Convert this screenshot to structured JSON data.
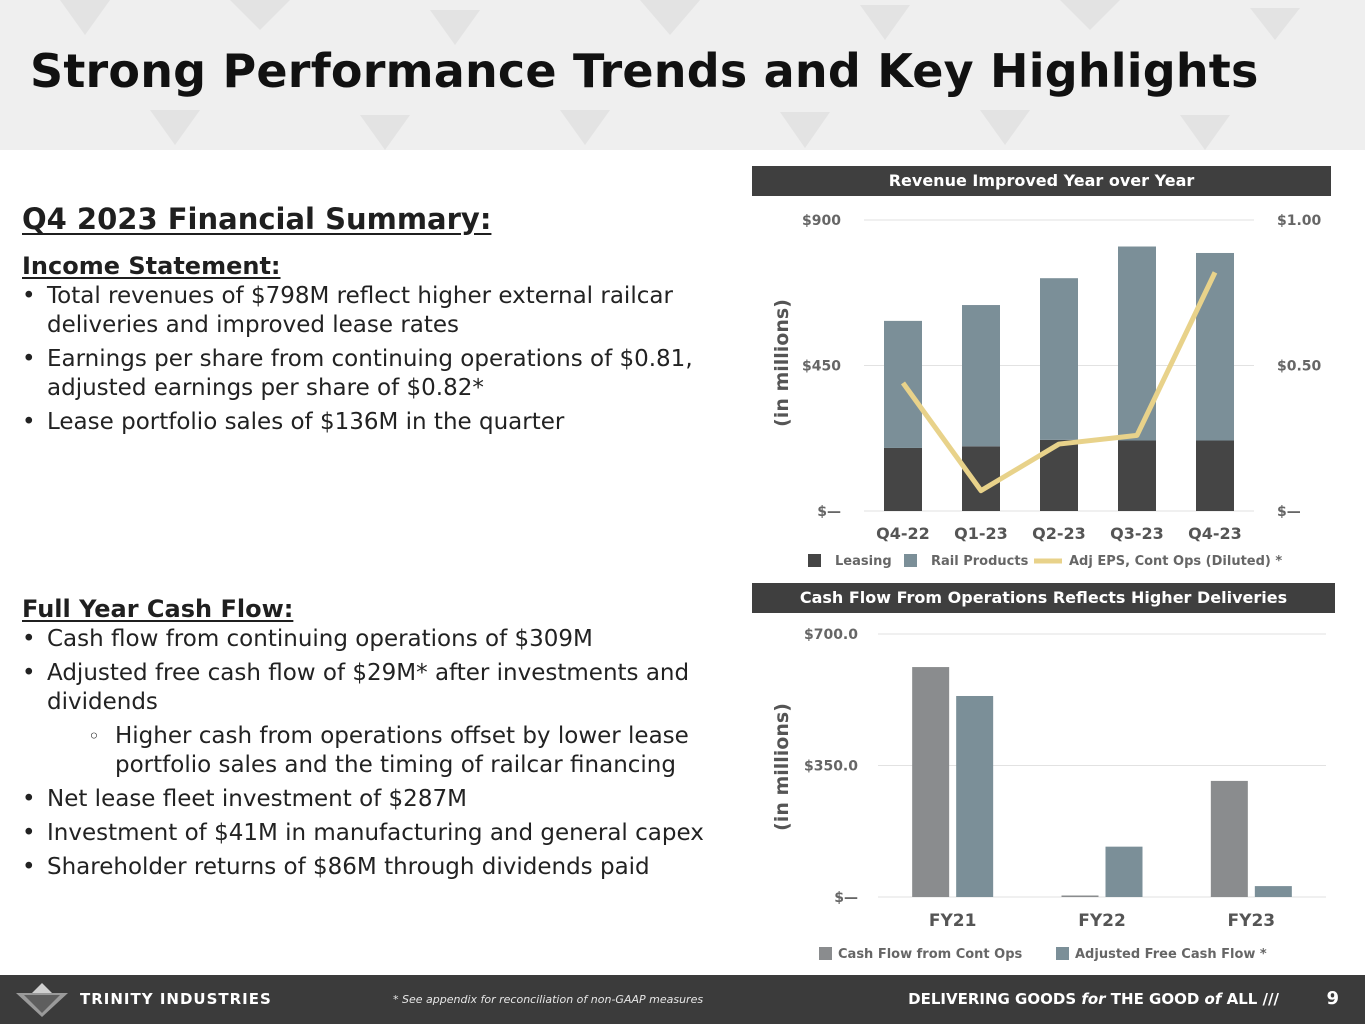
{
  "title": "Strong Performance Trends and Key Highlights",
  "summary_title": "Q4 2023 Financial Summary:",
  "income": {
    "heading": "Income Statement:",
    "bullets": [
      "Total revenues of $798M reflect higher external railcar deliveries and improved lease rates",
      "Earnings per share from continuing operations of $0.81, adjusted earnings per share of $0.82*",
      "Lease portfolio sales of $136M in the quarter"
    ]
  },
  "cashflow": {
    "heading": "Full Year Cash Flow:",
    "bullets": [
      "Cash flow from continuing operations of $309M",
      "Adjusted free cash flow of $29M* after investments and dividends",
      "Higher cash from operations offset by lower lease portfolio sales and the timing of railcar financing",
      "Net lease fleet investment of $287M",
      "Investment of $41M in manufacturing and general capex",
      "Shareholder returns of $86M through dividends paid"
    ]
  },
  "colors": {
    "leasing": "#454545",
    "rail_products": "#7b8f98",
    "eps_line": "#e8d28a",
    "cash_ops": "#8a8c8e",
    "adj_fcf": "#7b8f98",
    "header_band": "#3f3f3f"
  },
  "chart_data": [
    {
      "type": "bar",
      "stacked": true,
      "banner": "Revenue Improved Year over Year",
      "ylabel": "(in millions)",
      "categories": [
        "Q4-22",
        "Q1-23",
        "Q2-23",
        "Q3-23",
        "Q4-23"
      ],
      "series": [
        {
          "name": "Leasing",
          "values": [
            195,
            200,
            220,
            218,
            218
          ]
        },
        {
          "name": "Rail Products",
          "values": [
            393,
            437,
            500,
            600,
            580
          ]
        }
      ],
      "line_series": {
        "name": "Adj EPS, Cont Ops (Diluted) *",
        "values": [
          0.44,
          0.07,
          0.23,
          0.26,
          0.82
        ]
      },
      "ylim": [
        0,
        900
      ],
      "y2lim": [
        0,
        1.0
      ],
      "yticks": [
        "$—",
        "$450",
        "$900"
      ],
      "y2ticks": [
        "$—",
        "$0.50",
        "$1.00"
      ],
      "legend": "bottom"
    },
    {
      "type": "bar",
      "banner": "Cash Flow From Operations Reflects Higher Deliveries",
      "ylabel": "(in millions)",
      "categories": [
        "FY21",
        "FY22",
        "FY23"
      ],
      "series": [
        {
          "name": "Cash Flow from Cont Ops",
          "values": [
            612,
            4,
            309
          ]
        },
        {
          "name": "Adjusted Free Cash Flow *",
          "values": [
            535,
            134,
            29
          ]
        }
      ],
      "ylim": [
        0,
        700
      ],
      "yticks": [
        "$—",
        "$350.0",
        "$700.0"
      ],
      "legend": "bottom"
    }
  ],
  "footer": {
    "brand": "TRINITY INDUSTRIES",
    "note": "* See appendix for reconciliation of non-GAAP measures",
    "tag_a": "DELIVERING GOODS ",
    "tag_for": "for",
    "tag_b": " THE GOOD ",
    "tag_of": "of",
    "tag_c": " ALL  ///",
    "page": "9"
  }
}
